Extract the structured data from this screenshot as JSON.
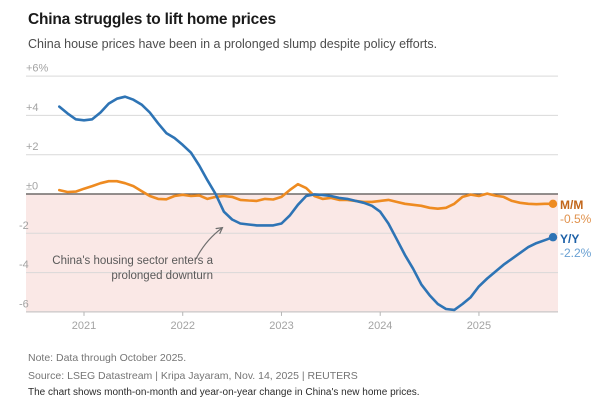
{
  "header": {
    "title": "China struggles to lift home prices",
    "subtitle": "China house prices have been in a prolonged slump despite policy efforts."
  },
  "chart_data": {
    "type": "line",
    "x_unit": "month",
    "x_range": [
      "2020-10",
      "2025-10"
    ],
    "x_ticks": [
      "2021",
      "2022",
      "2023",
      "2024",
      "2025"
    ],
    "y_ticks": [
      "+6%",
      "+4",
      "+2",
      "±0",
      "-2",
      "-4",
      "-6"
    ],
    "y_tick_values": [
      6,
      4,
      2,
      0,
      -2,
      -4,
      -6
    ],
    "ylim": [
      -6,
      6
    ],
    "grid": "horizontal",
    "negative_band_color": "#fae8e6",
    "grid_color": "#d9d9d9",
    "zero_line_color": "#524d4b",
    "axis_text_color": "#a3a3a3",
    "legend_position": "right-of-line-ends",
    "series": [
      {
        "name": "M/M",
        "value_label": "-0.5%",
        "color": "#ee8b21",
        "name_color": "#c2661a",
        "value_color": "#e0924d",
        "values": [
          0.2,
          0.1,
          0.12,
          0.27,
          0.4,
          0.55,
          0.65,
          0.65,
          0.55,
          0.4,
          0.15,
          -0.1,
          -0.25,
          -0.27,
          -0.1,
          -0.04,
          -0.1,
          -0.07,
          -0.25,
          -0.15,
          -0.1,
          -0.15,
          -0.3,
          -0.33,
          -0.35,
          -0.25,
          -0.28,
          -0.15,
          0.2,
          0.5,
          0.3,
          -0.1,
          -0.25,
          -0.2,
          -0.3,
          -0.3,
          -0.35,
          -0.4,
          -0.4,
          -0.35,
          -0.3,
          -0.4,
          -0.5,
          -0.55,
          -0.6,
          -0.7,
          -0.75,
          -0.7,
          -0.5,
          -0.15,
          -0.03,
          -0.1,
          0.02,
          -0.08,
          -0.15,
          -0.35,
          -0.45,
          -0.5,
          -0.52,
          -0.5,
          -0.5
        ]
      },
      {
        "name": "Y/Y",
        "value_label": "-2.2%",
        "color": "#2e74b5",
        "name_color": "#1c60a7",
        "value_color": "#69a0d2",
        "values": [
          4.45,
          4.1,
          3.8,
          3.75,
          3.8,
          4.15,
          4.6,
          4.85,
          4.95,
          4.8,
          4.55,
          4.15,
          3.6,
          3.1,
          2.85,
          2.5,
          2.1,
          1.45,
          0.7,
          0.0,
          -0.9,
          -1.3,
          -1.5,
          -1.55,
          -1.6,
          -1.6,
          -1.6,
          -1.5,
          -1.1,
          -0.55,
          -0.1,
          -0.02,
          -0.05,
          -0.1,
          -0.2,
          -0.25,
          -0.35,
          -0.45,
          -0.6,
          -0.9,
          -1.5,
          -2.3,
          -3.1,
          -3.8,
          -4.6,
          -5.15,
          -5.6,
          -5.85,
          -5.9,
          -5.6,
          -5.25,
          -4.7,
          -4.3,
          -3.95,
          -3.6,
          -3.3,
          -3.0,
          -2.7,
          -2.5,
          -2.35,
          -2.2
        ]
      }
    ],
    "annotation": {
      "line1": "China's housing sector enters a",
      "line2": "prolonged downturn"
    }
  },
  "footer": {
    "note": "Note: Data through October 2025.",
    "source": "Source: LSEG Datastream | Kripa Jayaram, Nov. 14, 2025 | REUTERS",
    "caption": "The chart shows month-on-month and year-on-year change in China's new home prices."
  }
}
